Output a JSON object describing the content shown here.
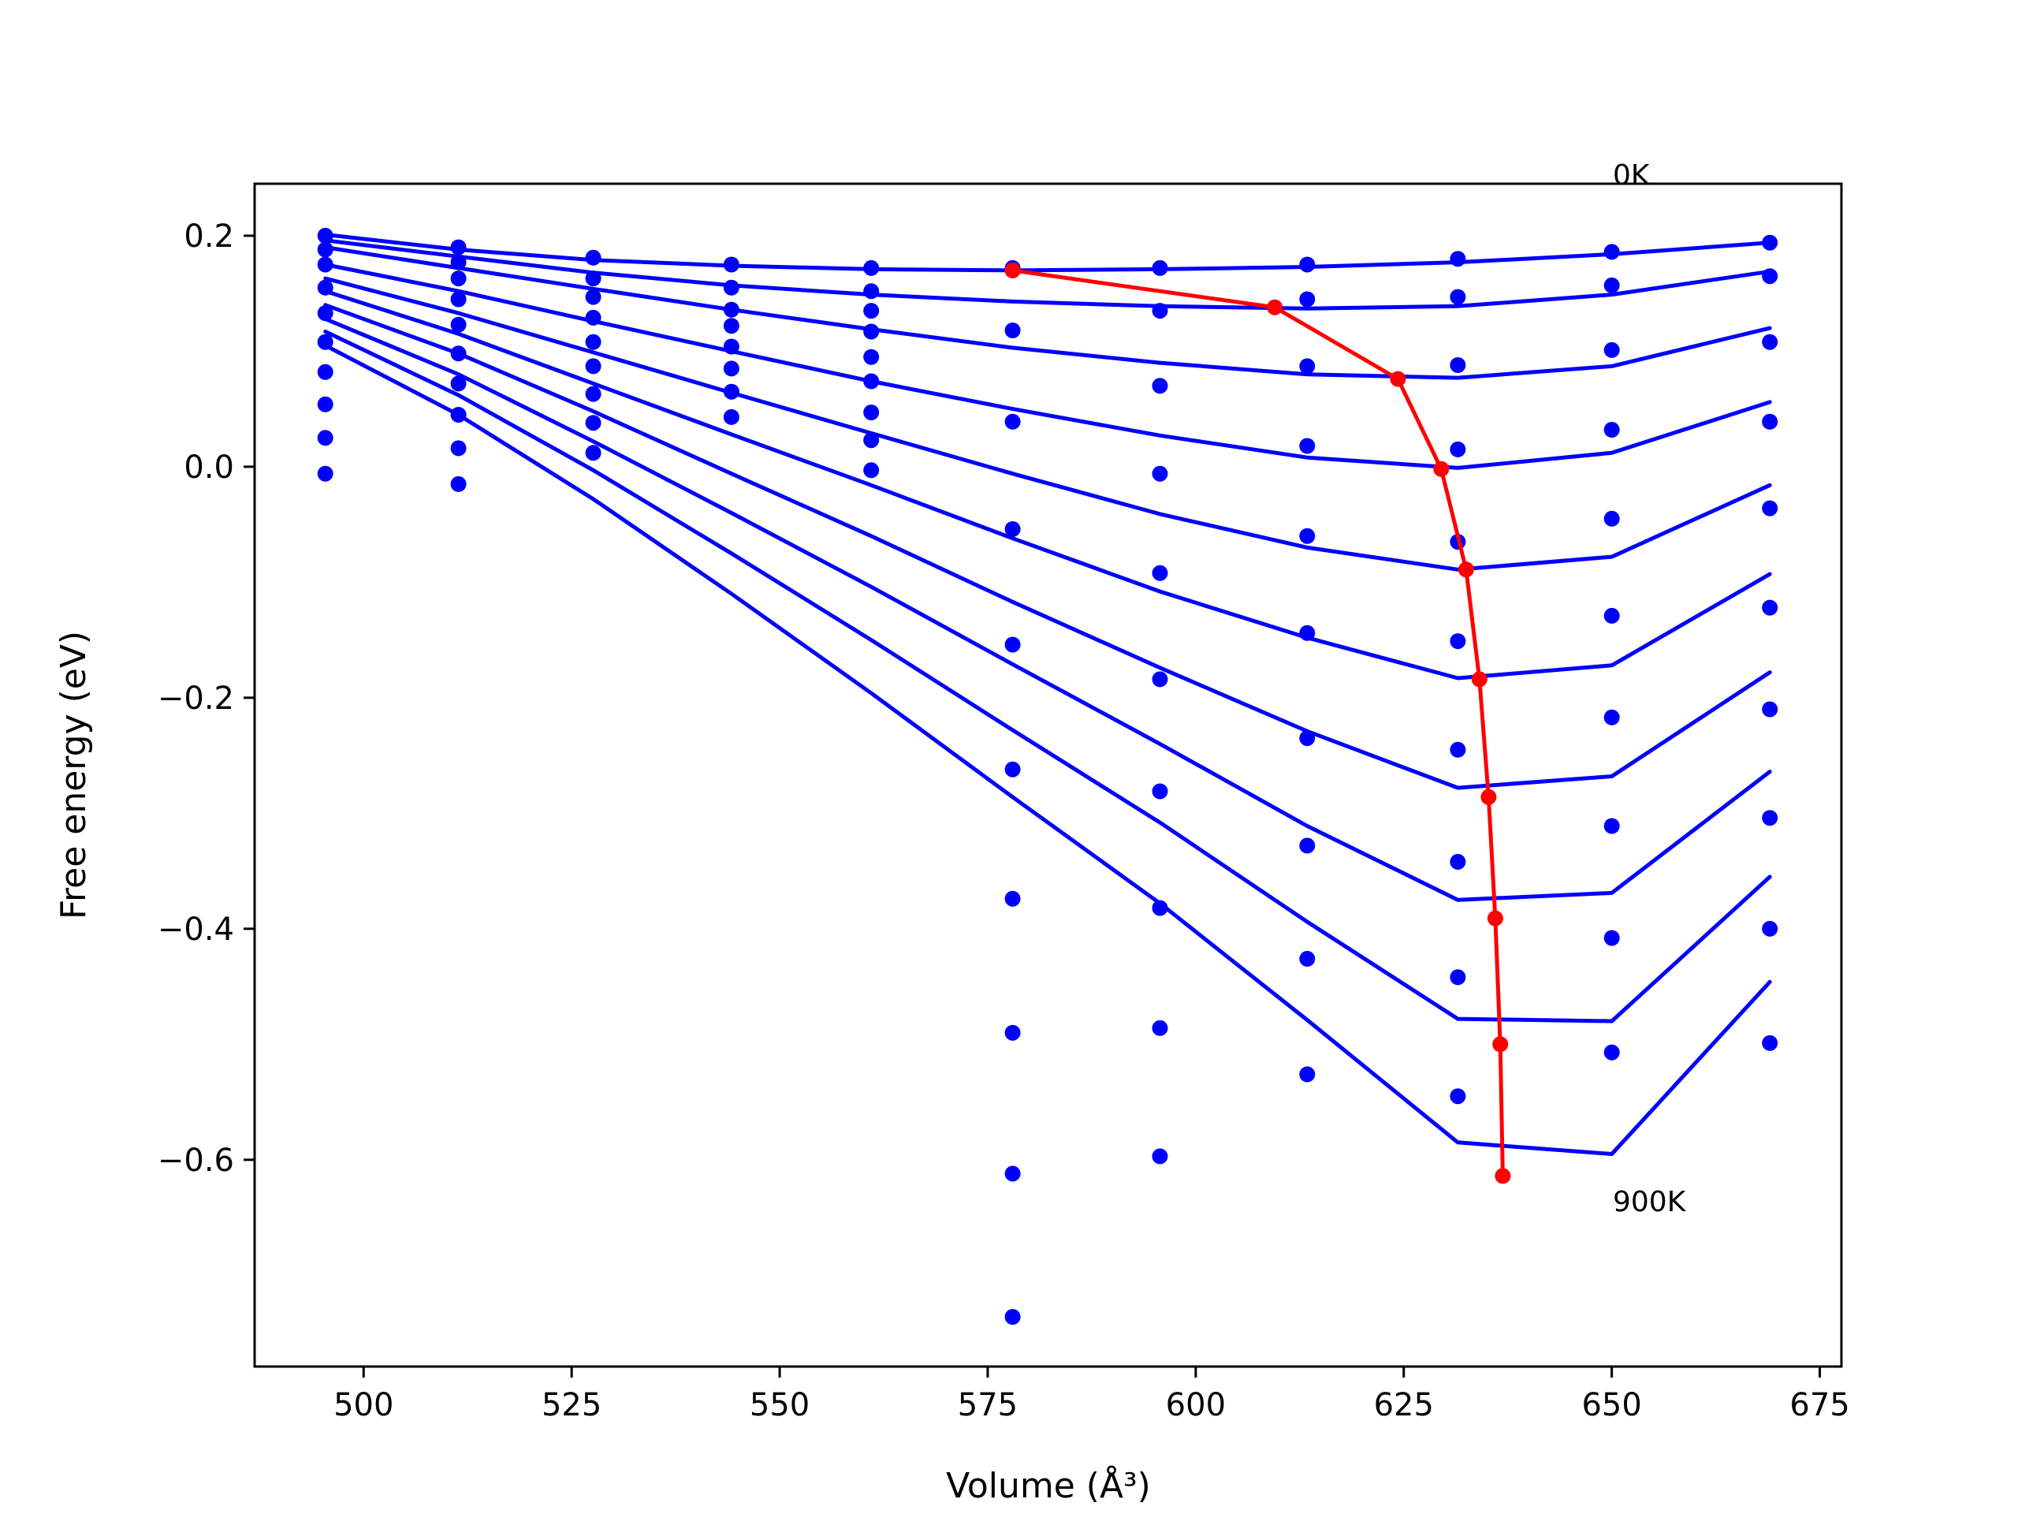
{
  "chart_data": {
    "type": "line",
    "title": "",
    "xlabel": "Volume (Å³)",
    "ylabel": "Free energy (eV)",
    "xlim": [
      486.9,
      677.6
    ],
    "ylim": [
      -0.779,
      0.245
    ],
    "xticks": [
      "500",
      "525",
      "550",
      "575",
      "600",
      "625",
      "650",
      "675"
    ],
    "yticks": [
      "−0.6",
      "−0.4",
      "−0.2",
      "0.0",
      "0.2"
    ],
    "grid": false,
    "legend": "none",
    "annotations": {
      "top": "0K",
      "bottom": "900K"
    },
    "colors": {
      "curves": "#0000ff",
      "minimum_path": "#ff0000",
      "frame": "#000000",
      "background": "#ffffff"
    },
    "x": [
      495.4,
      511.4,
      527.6,
      544.2,
      561.0,
      578.0,
      595.7,
      613.4,
      631.5,
      650.0,
      669.0
    ],
    "x_fit": [
      495.4,
      511.4,
      527.6,
      544.2,
      561.0,
      578.0,
      595.7,
      613.4,
      631.5,
      650.0,
      669.0
    ],
    "series": [
      {
        "points": [
          0.2,
          0.19,
          0.181,
          0.175,
          0.172,
          0.172,
          0.172,
          0.175,
          0.18,
          0.186,
          0.194
        ],
        "fit": [
          0.201,
          0.188,
          0.179,
          0.174,
          0.171,
          0.17,
          0.171,
          0.173,
          0.177,
          0.184,
          0.194
        ]
      },
      {
        "points": [
          0.188,
          0.177,
          0.163,
          0.155,
          0.152,
          0.17,
          0.135,
          0.145,
          0.147,
          0.157,
          0.165
        ],
        "fit": [
          0.196,
          0.182,
          0.168,
          0.157,
          0.149,
          0.143,
          0.139,
          0.137,
          0.139,
          0.149,
          0.169
        ]
      },
      {
        "points": [
          0.175,
          0.163,
          0.147,
          0.136,
          0.135,
          0.118,
          0.07,
          0.087,
          0.088,
          0.101,
          0.108
        ],
        "fit": [
          0.19,
          0.172,
          0.154,
          0.136,
          0.119,
          0.103,
          0.09,
          0.08,
          0.077,
          0.087,
          0.12
        ]
      },
      {
        "points": [
          0.155,
          0.145,
          0.129,
          0.122,
          0.117,
          0.039,
          -0.006,
          0.018,
          0.015,
          0.032,
          0.039
        ],
        "fit": [
          0.175,
          0.152,
          0.126,
          0.1,
          0.074,
          0.05,
          0.027,
          0.008,
          -0.001,
          0.012,
          0.056
        ]
      },
      {
        "points": [
          0.133,
          0.123,
          0.108,
          0.104,
          0.095,
          -0.054,
          -0.092,
          -0.06,
          -0.065,
          -0.045,
          -0.036
        ],
        "fit": [
          0.163,
          0.133,
          0.099,
          0.064,
          0.029,
          -0.006,
          -0.041,
          -0.07,
          -0.089,
          -0.078,
          -0.016
        ]
      },
      {
        "points": [
          0.108,
          0.098,
          0.087,
          0.085,
          0.074,
          -0.154,
          -0.184,
          -0.144,
          -0.151,
          -0.129,
          -0.122
        ],
        "fit": [
          0.152,
          0.115,
          0.072,
          0.028,
          -0.016,
          -0.062,
          -0.108,
          -0.148,
          -0.183,
          -0.172,
          -0.093
        ]
      },
      {
        "points": [
          0.082,
          0.072,
          0.063,
          0.065,
          0.047,
          -0.262,
          -0.281,
          -0.235,
          -0.245,
          -0.217,
          -0.21
        ],
        "fit": [
          0.14,
          0.098,
          0.048,
          -0.006,
          -0.06,
          -0.117,
          -0.174,
          -0.229,
          -0.278,
          -0.268,
          -0.178
        ]
      },
      {
        "points": [
          0.054,
          0.045,
          0.038,
          0.043,
          0.023,
          -0.374,
          -0.382,
          -0.328,
          -0.342,
          -0.311,
          -0.304
        ],
        "fit": [
          0.128,
          0.08,
          0.022,
          -0.04,
          -0.104,
          -0.171,
          -0.24,
          -0.311,
          -0.375,
          -0.369,
          -0.264
        ]
      },
      {
        "points": [
          0.025,
          0.016,
          0.012,
          null,
          -0.003,
          -0.49,
          -0.486,
          -0.426,
          -0.442,
          -0.408,
          -0.4
        ],
        "fit": [
          0.117,
          0.062,
          -0.003,
          -0.075,
          -0.15,
          -0.228,
          -0.308,
          -0.394,
          -0.478,
          -0.48,
          -0.355
        ]
      },
      {
        "points": [
          -0.006,
          -0.015,
          null,
          null,
          null,
          -0.612,
          -0.597,
          -0.526,
          -0.545,
          -0.507,
          -0.499
        ],
        "fit": [
          0.105,
          0.045,
          -0.028,
          -0.11,
          -0.196,
          -0.286,
          -0.378,
          -0.479,
          -0.585,
          -0.595,
          -0.446
        ]
      }
    ],
    "extra_points": [
      {
        "x": 578.0,
        "y": -0.736
      }
    ],
    "minimum_path": {
      "x": [
        578.0,
        609.5,
        624.3,
        629.5,
        632.5,
        634.1,
        635.2,
        636.0,
        636.6,
        636.9
      ],
      "y": [
        0.17,
        0.138,
        0.076,
        -0.002,
        -0.089,
        -0.184,
        -0.286,
        -0.391,
        -0.5,
        -0.614
      ]
    }
  }
}
